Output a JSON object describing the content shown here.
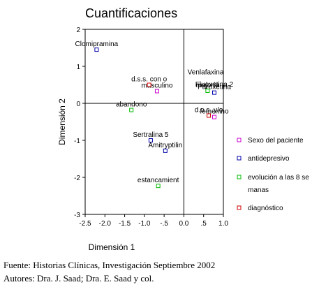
{
  "chart_data": {
    "type": "scatter",
    "title": "Cuantificaciones",
    "xlabel": "Dimensión 1",
    "ylabel": "Dimensión 2",
    "xlim": [
      -2.5,
      1.0
    ],
    "ylim": [
      -3,
      2
    ],
    "x_ticks": [
      "-2.5",
      "-2.0",
      "-1.5",
      "-1.0",
      "-.5",
      "0.0",
      ".5",
      "1.0"
    ],
    "y_ticks": [
      "2",
      "1",
      "0",
      "-1",
      "-2",
      "-3"
    ],
    "x_tick_values": [
      -2.5,
      -2.0,
      -1.5,
      -1.0,
      -0.5,
      0.0,
      0.5,
      1.0
    ],
    "y_tick_values": [
      2,
      1,
      0,
      -1,
      -2,
      -3
    ],
    "grid": false,
    "reference_lines": {
      "x": 0,
      "y": 0
    },
    "legend_position": "right",
    "series": [
      {
        "name": "Sexo del paciente",
        "color": "#cc00cc",
        "points": [
          {
            "x": -0.68,
            "y": 0.33,
            "label": "masculino"
          },
          {
            "x": 0.77,
            "y": -0.37,
            "label": "femenino"
          }
        ]
      },
      {
        "name": "antidepresivo",
        "color": "#0000aa",
        "points": [
          {
            "x": -2.21,
            "y": 1.45,
            "label": "Clomipramina"
          },
          {
            "x": 0.77,
            "y": 0.29,
            "label": "Paroxetina"
          },
          {
            "x": -0.84,
            "y": -1.0,
            "label": "Sertralina 5"
          },
          {
            "x": -0.47,
            "y": -1.28,
            "label": "Amitryptilin"
          }
        ]
      },
      {
        "name": "evolución a las 8 semanas",
        "color": "#00bb00",
        "points": [
          {
            "x": 0.6,
            "y": 0.34,
            "label": "mejoría"
          },
          {
            "x": -1.33,
            "y": -0.18,
            "label": "abandono"
          },
          {
            "x": -0.65,
            "y": -2.23,
            "label": "estancamient"
          }
        ]
      },
      {
        "name": "diagnóstico",
        "color": "#cc0000",
        "points": [
          {
            "x": -0.88,
            "y": 0.5,
            "label": "d.s.s. con o"
          },
          {
            "x": 0.63,
            "y": -0.33,
            "label": "d.o.s. y/o"
          }
        ]
      }
    ],
    "extra_labels": [
      {
        "text": "Venlafaxina",
        "x": 0.55,
        "y": 0.78
      },
      {
        "text": "Fluoxetina 2",
        "x": 0.77,
        "y": 0.45
      }
    ]
  },
  "legend": {
    "items": [
      {
        "line1": "Sexo del paciente",
        "line2": "",
        "color": "#cc00cc"
      },
      {
        "line1": "antidepresivo",
        "line2": "",
        "color": "#0000aa"
      },
      {
        "line1": "evolución a las 8 se",
        "line2": "manas",
        "color": "#00bb00"
      },
      {
        "line1": "diagnóstico",
        "line2": "",
        "color": "#cc0000"
      }
    ]
  },
  "source": {
    "line1": "Fuente: Historias Clínicas, Investigación Septiembre 2002",
    "line2": "Autores: Dra. J. Saad; Dra. E. Saad y col."
  }
}
